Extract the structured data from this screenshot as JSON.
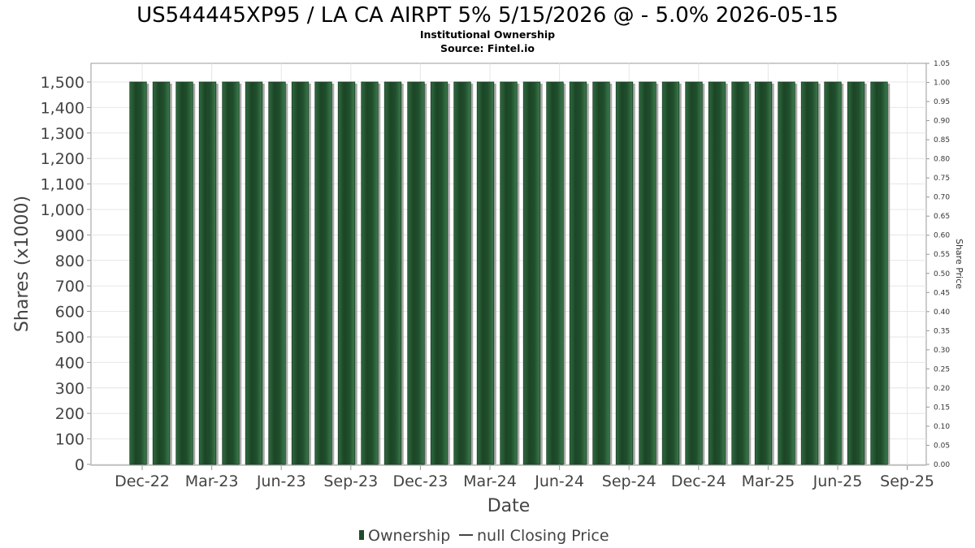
{
  "chart_data": {
    "type": "bar",
    "title": "US544445XP95 / LA CA AIRPT 5% 5/15/2026 @ - 5.0% 2026-05-15",
    "subtitle_line1": "Institutional Ownership",
    "subtitle_line2": "Source: Fintel.io",
    "xlabel": "Date",
    "ylabel": "Shares (x1000)",
    "ylabel_right": "Share Price",
    "ylim": [
      0,
      1500
    ],
    "ylim_right": [
      0,
      1.05
    ],
    "yticks": [
      "0",
      "100",
      "200",
      "300",
      "400",
      "500",
      "600",
      "700",
      "800",
      "900",
      "1,000",
      "1,100",
      "1,200",
      "1,300",
      "1,400",
      "1,500"
    ],
    "yticks_right": [
      "0.00",
      "0.05",
      "0.10",
      "0.15",
      "0.20",
      "0.25",
      "0.30",
      "0.35",
      "0.40",
      "0.45",
      "0.50",
      "0.55",
      "0.60",
      "0.65",
      "0.70",
      "0.75",
      "0.80",
      "0.85",
      "0.90",
      "0.95",
      "1.00",
      "1.05"
    ],
    "xticks": [
      "Dec-22",
      "Mar-23",
      "Jun-23",
      "Sep-23",
      "Dec-23",
      "Mar-24",
      "Jun-24",
      "Sep-24",
      "Dec-24",
      "Mar-25",
      "Jun-25",
      "Sep-25"
    ],
    "series": [
      {
        "name": "Ownership",
        "color": "#1e4d2b",
        "values": [
          1500,
          1500,
          1500,
          1500,
          1500,
          1500,
          1500,
          1500,
          1500,
          1500,
          1500,
          1500,
          1500,
          1500,
          1500,
          1500,
          1500,
          1500,
          1500,
          1500,
          1500,
          1500,
          1500,
          1500,
          1500,
          1500,
          1500,
          1500,
          1500,
          1500,
          1500,
          1500,
          1500
        ]
      }
    ],
    "legend": {
      "placement": "bottom",
      "items": [
        "Ownership",
        "null Closing Price"
      ]
    },
    "grid": true
  }
}
